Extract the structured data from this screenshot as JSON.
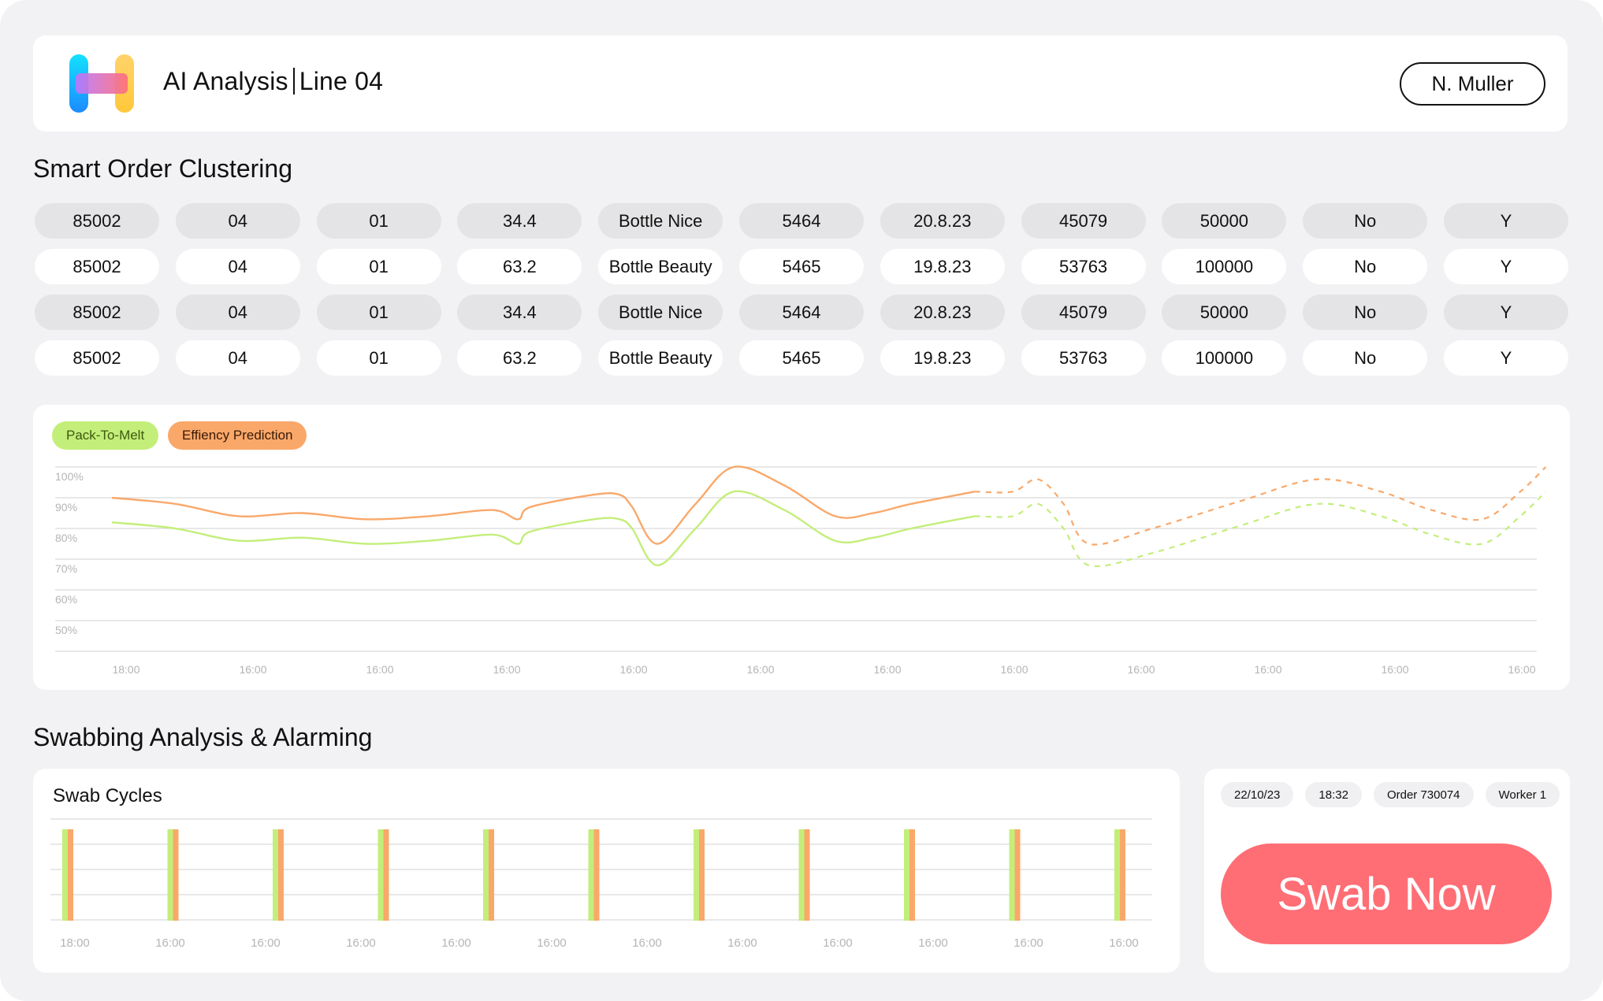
{
  "header": {
    "title_main": "AI  Analysis",
    "title_line": "Line 04",
    "user": "N. Muller",
    "logo_icon": "bars-logo-icon"
  },
  "orders": {
    "title": "Smart Order Clustering",
    "rows": [
      [
        "85002",
        "04",
        "01",
        "34.4",
        "Bottle Nice",
        "5464",
        "20.8.23",
        "45079",
        "50000",
        "No",
        "Y"
      ],
      [
        "85002",
        "04",
        "01",
        "63.2",
        "Bottle Beauty",
        "5465",
        "19.8.23",
        "53763",
        "100000",
        "No",
        "Y"
      ],
      [
        "85002",
        "04",
        "01",
        "34.4",
        "Bottle Nice",
        "5464",
        "20.8.23",
        "45079",
        "50000",
        "No",
        "Y"
      ],
      [
        "85002",
        "04",
        "01",
        "63.2",
        "Bottle Beauty",
        "5465",
        "19.8.23",
        "53763",
        "100000",
        "No",
        "Y"
      ]
    ]
  },
  "chart_data": [
    {
      "type": "line",
      "legend": [
        "Pack-To-Melt",
        "Effiency Prediction"
      ],
      "legend_placement": "top-left",
      "y_tick_labels": [
        "100%",
        "90%",
        "80%",
        "70%",
        "60%",
        "50%"
      ],
      "ylim": [
        45,
        100
      ],
      "x_tick_labels": [
        "18:00",
        "16:00",
        "16:00",
        "16:00",
        "16:00",
        "16:00",
        "16:00",
        "16:00",
        "16:00",
        "16:00",
        "16:00",
        "16:00"
      ],
      "grid": true,
      "colors": {
        "Pack-To-Melt": "#c3ee7a",
        "Effiency Prediction": "#f9a86a"
      },
      "series": [
        {
          "name": "Effiency Prediction",
          "x": [
            0,
            0.5,
            1,
            1.5,
            2,
            2.5,
            3,
            3.2,
            3.3,
            3.8,
            4,
            4.1,
            4.3,
            4.6,
            4.9,
            5.3,
            5.7,
            6,
            6.3,
            6.8
          ],
          "y": [
            90,
            88,
            84,
            85,
            83,
            84,
            86,
            83,
            87,
            91,
            91,
            87,
            75,
            88,
            100,
            94,
            84,
            85,
            88,
            92
          ],
          "forecast": {
            "x": [
              6.8,
              7.1,
              7.3,
              7.5,
              7.7,
              8.2,
              8.9,
              9.5,
              10,
              10.4,
              10.8,
              11.1,
              11.3
            ],
            "y": [
              92,
              92,
              96,
              88,
              75,
              80,
              89,
              96,
              92,
              86,
              83,
              92,
              100
            ]
          }
        },
        {
          "name": "Pack-To-Melt",
          "x": [
            0,
            0.5,
            1,
            1.5,
            2,
            2.5,
            3,
            3.2,
            3.3,
            3.8,
            4,
            4.1,
            4.3,
            4.6,
            4.9,
            5.3,
            5.7,
            6,
            6.3,
            6.8
          ],
          "y": [
            82,
            80,
            76,
            77,
            75,
            76,
            78,
            75,
            79,
            83,
            83,
            80,
            68,
            80,
            92,
            86,
            76,
            77,
            80,
            84
          ],
          "forecast": {
            "x": [
              6.8,
              7.1,
              7.3,
              7.5,
              7.7,
              8.2,
              8.9,
              9.5,
              10,
              10.4,
              10.8,
              11.1,
              11.3
            ],
            "y": [
              84,
              84,
              88,
              80,
              68,
              72,
              81,
              88,
              84,
              78,
              75,
              84,
              92
            ]
          }
        }
      ]
    },
    {
      "type": "bar",
      "title": "Swab Cycles",
      "x_tick_labels": [
        "18:00",
        "16:00",
        "16:00",
        "16:00",
        "16:00",
        "16:00",
        "16:00",
        "16:00",
        "16:00",
        "16:00",
        "16:00",
        "16:00"
      ],
      "cycles": 11,
      "grid": true,
      "colors": {
        "bar_a": "#c3ee7a",
        "bar_b": "#f9a86a"
      }
    }
  ],
  "swab": {
    "title": "Swabbing Analysis & Alarming",
    "tags": [
      "22/10/23",
      "18:32",
      "Order 730074",
      "Worker 1"
    ],
    "button": "Swab Now"
  }
}
